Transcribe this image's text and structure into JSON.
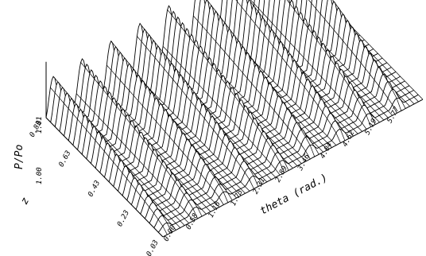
{
  "chart_data": {
    "type": "surface",
    "title": "",
    "x_axis": {
      "label": "theta (rad.)",
      "ticks": [
        "0.00",
        "0.58",
        "1.16",
        "1.73",
        "2.31",
        "2.89",
        "3.46",
        "4.04",
        "4.62",
        "5.19",
        "5.77"
      ],
      "range": [
        0,
        6.28
      ]
    },
    "y_axis": {
      "label": "z",
      "ticks": [
        "0.83",
        "0.63",
        "0.43",
        "0.23",
        "0.03"
      ],
      "range": [
        0.83,
        0.03
      ]
    },
    "z_axis": {
      "label": "P/Po",
      "ticks": [
        "1.00",
        "1.01"
      ],
      "range": [
        1.0,
        1.01
      ]
    },
    "peaks_along_theta": 9,
    "grid_mesh": true,
    "line_color": "#000000"
  }
}
